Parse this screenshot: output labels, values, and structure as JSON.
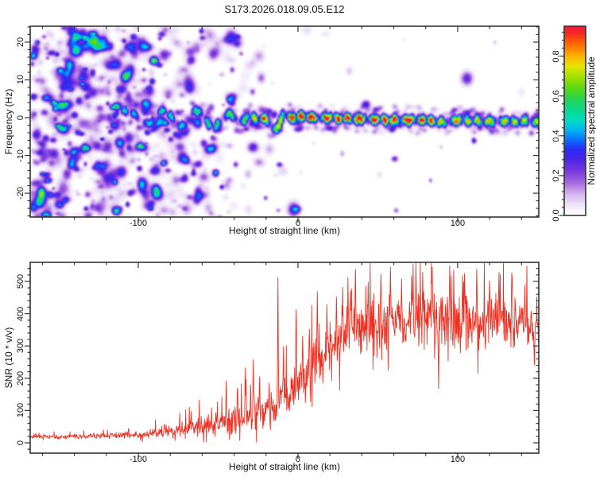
{
  "title": "S173.2026.018.09.05.E12",
  "colors": {
    "trace_red": "#ee3123",
    "axis": "#333333",
    "background": "#ffffff"
  },
  "colormap_stops": [
    [
      0.0,
      "#ffffff"
    ],
    [
      0.04,
      "#f3ebfa"
    ],
    [
      0.1,
      "#d9bdf0"
    ],
    [
      0.16,
      "#a86ce0"
    ],
    [
      0.22,
      "#7a3ae0"
    ],
    [
      0.28,
      "#4b24e8"
    ],
    [
      0.33,
      "#2b2bf5"
    ],
    [
      0.38,
      "#0a70ff"
    ],
    [
      0.43,
      "#00b8f0"
    ],
    [
      0.48,
      "#00ddc0"
    ],
    [
      0.53,
      "#0ad98c"
    ],
    [
      0.58,
      "#22d355"
    ],
    [
      0.64,
      "#5ad810"
    ],
    [
      0.7,
      "#a8e000"
    ],
    [
      0.75,
      "#e6e400"
    ],
    [
      0.8,
      "#ffb400"
    ],
    [
      0.86,
      "#ff6a00"
    ],
    [
      0.92,
      "#f52525"
    ],
    [
      1.0,
      "#e9155c"
    ]
  ],
  "chart_data": [
    {
      "type": "heatmap",
      "xlabel": "Height of straight line (km)",
      "ylabel": "Frequency (Hz)",
      "xlim": [
        -167.7,
        150.8
      ],
      "ylim": [
        -26.3,
        24.2
      ],
      "xticks": [
        -100,
        0,
        100
      ],
      "xtick_labels": [
        "-100",
        "0",
        "100"
      ],
      "yticks": [
        -20,
        -10,
        0,
        10,
        20
      ],
      "ytick_labels": [
        "-20",
        "-10",
        "0",
        "10",
        "20"
      ],
      "x_minor_step": 20,
      "y_minor_step": 2,
      "seed": 11,
      "colorbar": {
        "title": "Normalized spectral amplitude",
        "tick_values": [
          0,
          0.2,
          0.4,
          0.6,
          0.8
        ],
        "tick_labels": [
          "0.0",
          "0.2",
          "0.4",
          "0.6",
          "0.8"
        ],
        "minor_step": 0.04,
        "vmin": 0,
        "vmax": 0.95
      },
      "ridge_track": [
        [
          -117,
          0.4
        ],
        [
          -113,
          1.6
        ],
        [
          -109,
          2.1
        ],
        [
          -105,
          1.8
        ],
        [
          -101,
          0.4
        ],
        [
          -98,
          -0.7
        ],
        [
          -95,
          -1.5
        ],
        [
          -92,
          -0.9
        ],
        [
          -89,
          0.6
        ],
        [
          -86,
          2.2
        ],
        [
          -83,
          1.7
        ],
        [
          -80,
          0.3
        ],
        [
          -77,
          -1.1
        ],
        [
          -74,
          -2.3
        ],
        [
          -71,
          -1.4
        ],
        [
          -68,
          0.6
        ],
        [
          -65,
          2.1
        ],
        [
          -62,
          1.6
        ],
        [
          -59,
          0.2
        ],
        [
          -56,
          -1.6
        ],
        [
          -53,
          -2.5
        ],
        [
          -50,
          -1.4
        ],
        [
          -47,
          0.3
        ],
        [
          -44,
          1.3
        ],
        [
          -41,
          0.5
        ],
        [
          -38,
          -1.1
        ],
        [
          -35,
          -0.7
        ],
        [
          -32,
          0.3
        ],
        [
          -29,
          0.3
        ],
        [
          -26,
          -0.3
        ],
        [
          -23,
          0.2
        ],
        [
          -20,
          -0.7
        ],
        [
          -17,
          -2.0
        ],
        [
          -14,
          -3.1
        ],
        [
          -12,
          -1.2
        ],
        [
          -10,
          0.9
        ],
        [
          -8,
          1.3
        ],
        [
          -6,
          0.4
        ],
        [
          -3,
          0.2
        ],
        [
          0,
          0.5
        ],
        [
          5,
          0.4
        ],
        [
          10,
          0.2
        ],
        [
          20,
          0.1
        ],
        [
          30,
          0.0
        ],
        [
          40,
          -0.2
        ],
        [
          50,
          -0.3
        ],
        [
          60,
          -0.4
        ],
        [
          70,
          -0.4
        ],
        [
          80,
          -0.5
        ],
        [
          87,
          -0.8
        ],
        [
          92,
          -1.0
        ],
        [
          97,
          -0.5
        ],
        [
          105,
          -0.6
        ],
        [
          115,
          -0.7
        ],
        [
          125,
          -0.8
        ],
        [
          135,
          -0.8
        ],
        [
          145,
          -0.9
        ],
        [
          150,
          -1.0
        ]
      ],
      "ridge_amplitude": [
        [
          -120,
          0.15
        ],
        [
          -114,
          0.32
        ],
        [
          -108,
          0.46
        ],
        [
          -102,
          0.38
        ],
        [
          -96,
          0.42
        ],
        [
          -90,
          0.4
        ],
        [
          -84,
          0.5
        ],
        [
          -78,
          0.44
        ],
        [
          -72,
          0.42
        ],
        [
          -66,
          0.54
        ],
        [
          -60,
          0.46
        ],
        [
          -54,
          0.5
        ],
        [
          -48,
          0.52
        ],
        [
          -42,
          0.55
        ],
        [
          -36,
          0.52
        ],
        [
          -30,
          0.62
        ],
        [
          -26,
          0.72
        ],
        [
          -22,
          0.85
        ],
        [
          -18,
          0.7
        ],
        [
          -14,
          0.62
        ],
        [
          -10,
          0.72
        ],
        [
          -6,
          0.85
        ],
        [
          -2,
          0.92
        ],
        [
          4,
          0.9
        ],
        [
          10,
          0.93
        ],
        [
          16,
          0.88
        ],
        [
          24,
          0.92
        ],
        [
          32,
          0.9
        ],
        [
          40,
          0.93
        ],
        [
          48,
          0.9
        ],
        [
          56,
          0.92
        ],
        [
          64,
          0.9
        ],
        [
          72,
          0.92
        ],
        [
          80,
          0.88
        ],
        [
          86,
          0.8
        ],
        [
          90,
          0.66
        ],
        [
          94,
          0.8
        ],
        [
          100,
          0.74
        ],
        [
          108,
          0.68
        ],
        [
          116,
          0.72
        ],
        [
          124,
          0.66
        ],
        [
          132,
          0.7
        ],
        [
          140,
          0.64
        ],
        [
          150,
          0.62
        ]
      ],
      "noise_density": [
        [
          -168,
          1.0
        ],
        [
          -145,
          1.0
        ],
        [
          -125,
          0.92
        ],
        [
          -108,
          0.82
        ],
        [
          -95,
          0.72
        ],
        [
          -82,
          0.62
        ],
        [
          -70,
          0.52
        ],
        [
          -58,
          0.42
        ],
        [
          -46,
          0.33
        ],
        [
          -36,
          0.26
        ],
        [
          -28,
          0.18
        ],
        [
          -20,
          0.12
        ],
        [
          -12,
          0.07
        ],
        [
          -4,
          0.04
        ],
        [
          5,
          0.025
        ],
        [
          20,
          0.02
        ],
        [
          50,
          0.015
        ],
        [
          100,
          0.015
        ],
        [
          150,
          0.015
        ]
      ]
    },
    {
      "type": "line",
      "series_name": "SNR",
      "xlabel": "Height of straight line (km)",
      "ylabel": "SNR (10 * v/v)",
      "xlim": [
        -167.7,
        150.8
      ],
      "ylim": [
        -32,
        559
      ],
      "xticks": [
        -100,
        0,
        100
      ],
      "xtick_labels": [
        "-100",
        "0",
        "100"
      ],
      "yticks": [
        0,
        100,
        200,
        300,
        400,
        500
      ],
      "ytick_labels": [
        "0",
        "100",
        "200",
        "300",
        "400",
        "500"
      ],
      "x_minor_step": 20,
      "y_minor_step": 20,
      "seed": 7,
      "envelope": [
        [
          -168,
          18,
          13
        ],
        [
          -150,
          18,
          13
        ],
        [
          -132,
          20,
          15
        ],
        [
          -115,
          22,
          17
        ],
        [
          -100,
          26,
          22
        ],
        [
          -90,
          30,
          27
        ],
        [
          -80,
          37,
          33
        ],
        [
          -70,
          44,
          42
        ],
        [
          -62,
          50,
          52
        ],
        [
          -54,
          57,
          68
        ],
        [
          -46,
          62,
          72
        ],
        [
          -38,
          70,
          84
        ],
        [
          -31,
          80,
          92
        ],
        [
          -25,
          87,
          92
        ],
        [
          -19,
          98,
          98
        ],
        [
          -14,
          112,
          118
        ],
        [
          -10,
          135,
          112
        ],
        [
          -6,
          148,
          116
        ],
        [
          -2,
          172,
          128
        ],
        [
          2,
          194,
          134
        ],
        [
          6,
          216,
          138
        ],
        [
          10,
          240,
          142
        ],
        [
          15,
          266,
          146
        ],
        [
          20,
          292,
          150
        ],
        [
          25,
          316,
          150
        ],
        [
          30,
          340,
          148
        ],
        [
          35,
          356,
          152
        ],
        [
          40,
          366,
          156
        ],
        [
          50,
          372,
          158
        ],
        [
          60,
          376,
          162
        ],
        [
          70,
          376,
          166
        ],
        [
          80,
          381,
          166
        ],
        [
          90,
          381,
          170
        ],
        [
          100,
          376,
          162
        ],
        [
          110,
          373,
          160
        ],
        [
          120,
          371,
          158
        ],
        [
          130,
          369,
          156
        ],
        [
          140,
          363,
          152
        ],
        [
          146,
          356,
          150
        ],
        [
          150,
          332,
          140
        ]
      ],
      "spikes": [
        [
          -45,
          192
        ],
        [
          -38,
          168
        ],
        [
          -33,
          232
        ],
        [
          -28,
          258
        ],
        [
          -24,
          205
        ],
        [
          -18,
          185
        ],
        [
          -12.5,
          512
        ],
        [
          -9,
          298
        ],
        [
          -1,
          412
        ],
        [
          3,
          330
        ],
        [
          7,
          352
        ],
        [
          12,
          468
        ],
        [
          18,
          428
        ],
        [
          24,
          452
        ],
        [
          28,
          482
        ],
        [
          33,
          470
        ],
        [
          36,
          538
        ],
        [
          44,
          498
        ],
        [
          52,
          522
        ],
        [
          58,
          543
        ],
        [
          65,
          508
        ],
        [
          72,
          553
        ],
        [
          78,
          528
        ],
        [
          84,
          543
        ],
        [
          88,
          168
        ],
        [
          95,
          548
        ],
        [
          103,
          518
        ],
        [
          112,
          538
        ],
        [
          120,
          502
        ],
        [
          126,
          528
        ],
        [
          134,
          508
        ],
        [
          142,
          488
        ],
        [
          148,
          242
        ],
        [
          149.6,
          452
        ]
      ]
    }
  ]
}
